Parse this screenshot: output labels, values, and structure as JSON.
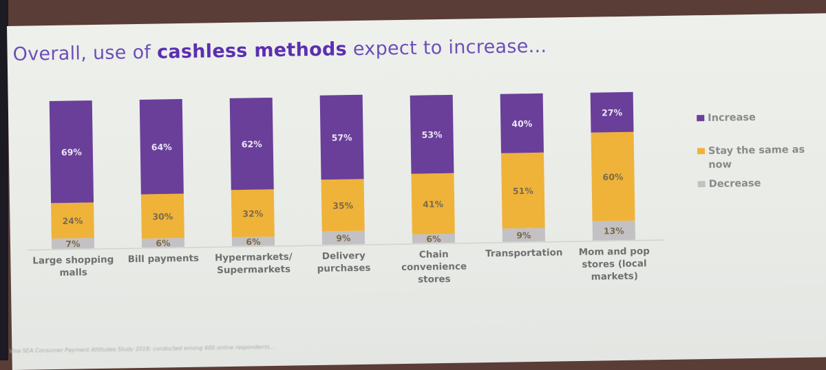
{
  "slide": {
    "title_prefix": "Overall, use of ",
    "title_bold": "cashless methods",
    "title_suffix": " expect to increase...",
    "footnote": "Visa SEA Consumer Payment Attitudes Study 2018; conducted among 600 online respondents..."
  },
  "colors": {
    "increase": "#6a3f9a",
    "same": "#efb33a",
    "decrease": "#c3c1c4",
    "label_light": "#ece6f4",
    "label_dark": "#7a6a4a",
    "category_text": "#6f6f6f"
  },
  "legend": [
    {
      "key": "increase",
      "label": "Increase"
    },
    {
      "key": "same",
      "label": "Stay the same as now"
    },
    {
      "key": "decrease",
      "label": "Decrease"
    }
  ],
  "chart_data": {
    "type": "bar",
    "stacked": true,
    "title": "Overall, use of cashless methods expect to increase...",
    "xlabel": "",
    "ylabel": "",
    "ylim": [
      0,
      100
    ],
    "grid": false,
    "legend_position": "right",
    "categories": [
      "Large shopping malls",
      "Bill payments",
      "Hypermarkets/ Supermarkets",
      "Delivery purchases",
      "Chain convenience stores",
      "Transportation",
      "Mom and pop stores (local markets)"
    ],
    "category_lines": [
      [
        "Large shopping",
        "malls"
      ],
      [
        "Bill payments"
      ],
      [
        "Hypermarkets/",
        "Supermarkets"
      ],
      [
        "Delivery",
        "purchases"
      ],
      [
        "Chain",
        "convenience",
        "stores"
      ],
      [
        "Transportation"
      ],
      [
        "Mom and pop",
        "stores (local",
        "markets)"
      ]
    ],
    "series": [
      {
        "name": "Decrease",
        "key": "decrease",
        "values": [
          7,
          6,
          6,
          9,
          6,
          9,
          13
        ]
      },
      {
        "name": "Stay the same as now",
        "key": "same",
        "values": [
          24,
          30,
          32,
          35,
          41,
          51,
          60
        ]
      },
      {
        "name": "Increase",
        "key": "increase",
        "values": [
          69,
          64,
          62,
          57,
          53,
          40,
          27
        ]
      }
    ],
    "value_suffix": "%"
  }
}
